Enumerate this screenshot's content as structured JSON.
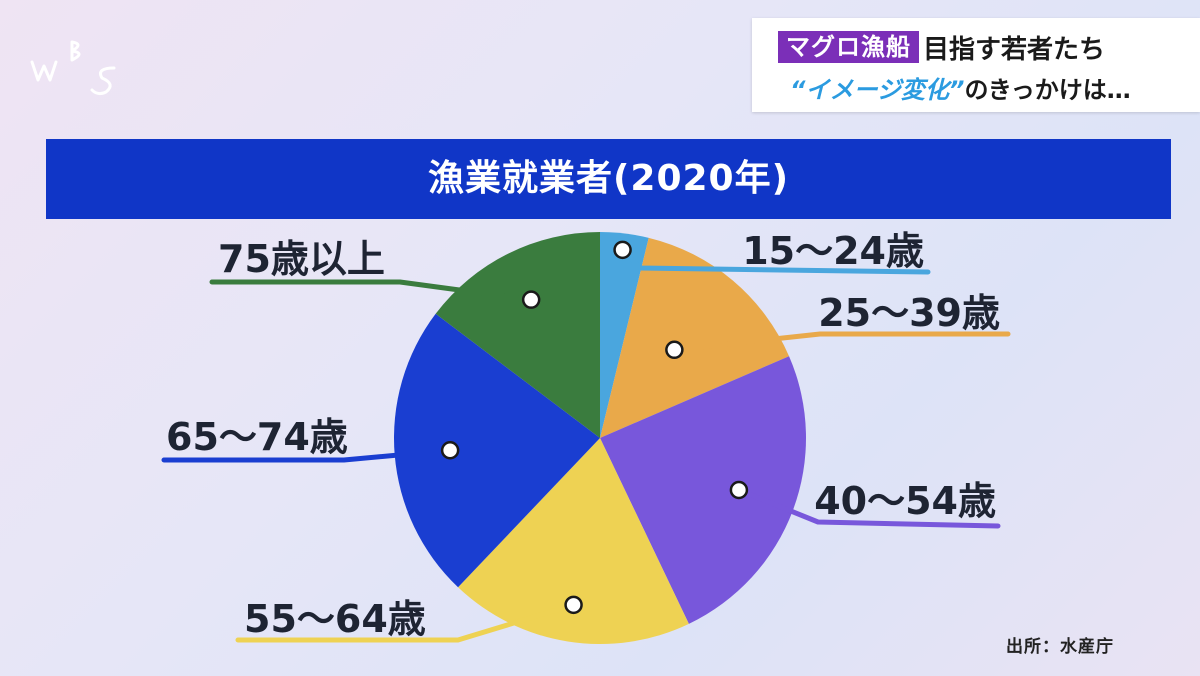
{
  "logo": {
    "letters": "WBS"
  },
  "headline": {
    "tag": "マグロ漁船",
    "line1_rest": "目指す若者たち",
    "quote": "“イメージ変化”",
    "line2_rest": "のきっかけは…"
  },
  "banner": {
    "title": "漁業就業者(2020年)"
  },
  "source": "出所：水産庁",
  "chart_data": {
    "type": "pie",
    "title": "漁業就業者(2020年)",
    "start_angle_deg": 0,
    "direction": "clockwise",
    "slices": [
      {
        "label": "15〜24歳",
        "value": 3.8,
        "color": "#4aa6de"
      },
      {
        "label": "25〜39歳",
        "value": 14.7,
        "color": "#e9a94a"
      },
      {
        "label": "40〜54歳",
        "value": 24.4,
        "color": "#7857db"
      },
      {
        "label": "55〜64歳",
        "value": 19.2,
        "color": "#eed253"
      },
      {
        "label": "65〜74歳",
        "value": 23.2,
        "color": "#1a3ed1"
      },
      {
        "label": "75歳以上",
        "value": 14.7,
        "color": "#3a7c3e"
      }
    ]
  }
}
